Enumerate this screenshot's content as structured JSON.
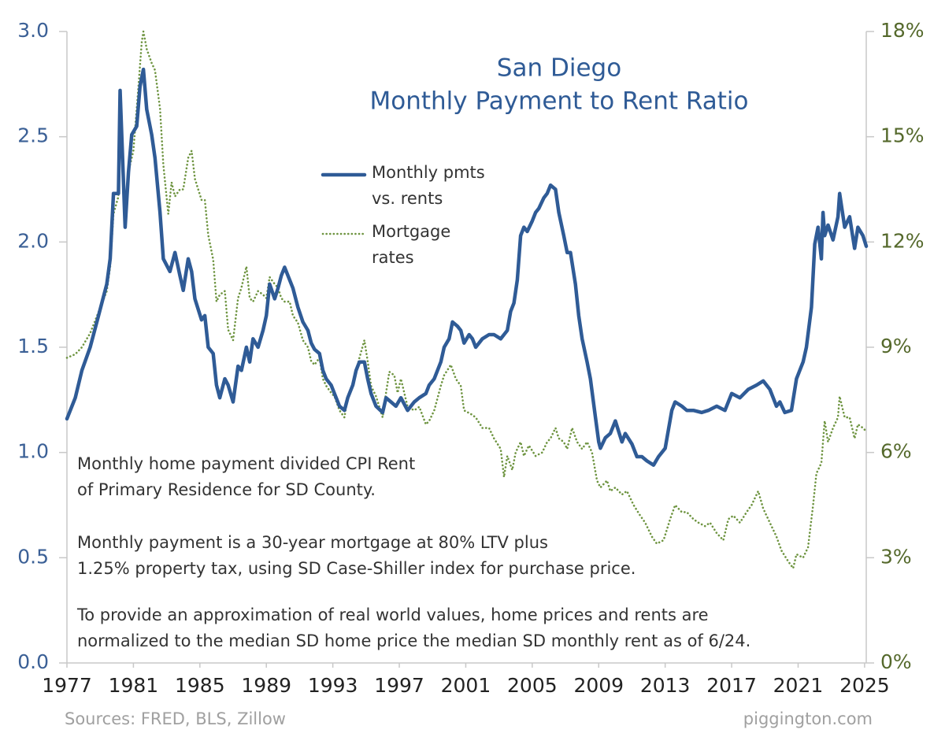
{
  "chart_data": {
    "type": "line",
    "title": "San Diego",
    "subtitle": "Monthly Payment to Rent Ratio",
    "xlim": [
      1977,
      2025.1
    ],
    "xticks": [
      1977,
      1981,
      1985,
      1989,
      1993,
      1997,
      2001,
      2005,
      2009,
      2013,
      2017,
      2021,
      2025
    ],
    "ylim": [
      0,
      3
    ],
    "yticks": [
      {
        "value": 0,
        "label": "0.0"
      },
      0.5,
      {
        "value": 1,
        "label": "1.0"
      },
      1.5,
      {
        "value": 2,
        "label": "2.0"
      },
      2.5,
      {
        "value": 3,
        "label": "3.0"
      }
    ],
    "y2lim": [
      0,
      18
    ],
    "y2ticks": [
      {
        "value": 0,
        "label": "0%"
      },
      {
        "value": 3,
        "label": "3%"
      },
      {
        "value": 6,
        "label": "6%"
      },
      {
        "value": 9,
        "label": "9%"
      },
      {
        "value": 12,
        "label": "12%"
      },
      {
        "value": 15,
        "label": "15%"
      },
      {
        "value": 18,
        "label": "18%"
      }
    ],
    "grid": false,
    "series": [
      {
        "name": "Monthly pmts vs. rents",
        "color": "#2f5b96",
        "style": "solid",
        "axis": "y",
        "x": [
          1977.0,
          1977.5,
          1977.9,
          1978.4,
          1978.9,
          1979.4,
          1979.6,
          1979.8,
          1980.1,
          1980.2,
          1980.5,
          1980.7,
          1980.9,
          1981.2,
          1981.4,
          1981.6,
          1981.8,
          1982.1,
          1982.3,
          1982.6,
          1982.8,
          1983.2,
          1983.5,
          1983.8,
          1984.0,
          1984.3,
          1984.5,
          1984.7,
          1985.1,
          1985.3,
          1985.5,
          1985.8,
          1986.0,
          1986.2,
          1986.5,
          1986.7,
          1987.0,
          1987.3,
          1987.5,
          1987.8,
          1988.0,
          1988.2,
          1988.5,
          1988.8,
          1989.0,
          1989.2,
          1989.5,
          1989.7,
          1989.9,
          1990.1,
          1990.4,
          1990.6,
          1990.9,
          1991.2,
          1991.5,
          1991.7,
          1991.9,
          1992.2,
          1992.4,
          1992.6,
          1992.9,
          1993.1,
          1993.4,
          1993.7,
          1993.9,
          1994.2,
          1994.4,
          1994.6,
          1994.9,
          1995.1,
          1995.3,
          1995.6,
          1996.0,
          1996.2,
          1996.5,
          1996.8,
          1997.1,
          1997.5,
          1997.9,
          1998.2,
          1998.6,
          1998.8,
          1999.1,
          1999.5,
          1999.7,
          2000.0,
          2000.2,
          2000.5,
          2000.7,
          2000.9,
          2001.2,
          2001.4,
          2001.6,
          2002.0,
          2002.4,
          2002.7,
          2003.1,
          2003.3,
          2003.5,
          2003.7,
          2003.9,
          2004.1,
          2004.3,
          2004.5,
          2004.7,
          2005.0,
          2005.2,
          2005.4,
          2005.7,
          2005.9,
          2006.1,
          2006.4,
          2006.6,
          2006.9,
          2007.1,
          2007.3,
          2007.6,
          2007.8,
          2008.0,
          2008.3,
          2008.5,
          2008.8,
          2009.0,
          2009.1,
          2009.4,
          2009.7,
          2010.0,
          2010.4,
          2010.6,
          2011.0,
          2011.3,
          2011.6,
          2011.9,
          2012.3,
          2012.6,
          2013.0,
          2013.4,
          2013.6,
          2014.0,
          2014.3,
          2014.7,
          2015.2,
          2015.6,
          2016.1,
          2016.6,
          2017.0,
          2017.5,
          2018.0,
          2018.5,
          2018.9,
          2019.3,
          2019.7,
          2019.9,
          2020.2,
          2020.6,
          2020.9,
          2021.3,
          2021.5,
          2021.8,
          2022.0,
          2022.2,
          2022.4,
          2022.5,
          2022.6,
          2022.8,
          2023.1,
          2023.4,
          2023.5,
          2023.8,
          2024.1,
          2024.4,
          2024.6,
          2024.9,
          2025.1
        ],
        "values": [
          1.16,
          1.26,
          1.39,
          1.5,
          1.65,
          1.8,
          1.92,
          2.23,
          2.23,
          2.72,
          2.07,
          2.33,
          2.51,
          2.55,
          2.74,
          2.82,
          2.63,
          2.51,
          2.4,
          2.14,
          1.92,
          1.86,
          1.95,
          1.84,
          1.77,
          1.92,
          1.86,
          1.73,
          1.63,
          1.65,
          1.5,
          1.47,
          1.32,
          1.26,
          1.35,
          1.32,
          1.24,
          1.41,
          1.39,
          1.5,
          1.43,
          1.54,
          1.5,
          1.58,
          1.65,
          1.8,
          1.73,
          1.78,
          1.84,
          1.88,
          1.82,
          1.78,
          1.69,
          1.62,
          1.58,
          1.52,
          1.49,
          1.47,
          1.39,
          1.35,
          1.32,
          1.28,
          1.22,
          1.2,
          1.26,
          1.32,
          1.39,
          1.43,
          1.43,
          1.35,
          1.28,
          1.22,
          1.19,
          1.26,
          1.24,
          1.22,
          1.26,
          1.2,
          1.24,
          1.26,
          1.28,
          1.32,
          1.35,
          1.43,
          1.5,
          1.54,
          1.62,
          1.6,
          1.58,
          1.52,
          1.56,
          1.54,
          1.5,
          1.54,
          1.56,
          1.56,
          1.54,
          1.56,
          1.58,
          1.67,
          1.71,
          1.82,
          2.03,
          2.07,
          2.05,
          2.1,
          2.14,
          2.16,
          2.21,
          2.23,
          2.27,
          2.25,
          2.14,
          2.03,
          1.95,
          1.95,
          1.8,
          1.65,
          1.54,
          1.43,
          1.35,
          1.17,
          1.05,
          1.02,
          1.07,
          1.09,
          1.15,
          1.05,
          1.09,
          1.04,
          0.98,
          0.98,
          0.96,
          0.94,
          0.98,
          1.02,
          1.2,
          1.24,
          1.22,
          1.2,
          1.2,
          1.19,
          1.2,
          1.22,
          1.2,
          1.28,
          1.26,
          1.3,
          1.32,
          1.34,
          1.3,
          1.22,
          1.24,
          1.19,
          1.2,
          1.35,
          1.43,
          1.5,
          1.69,
          1.99,
          2.07,
          1.92,
          2.14,
          2.03,
          2.08,
          2.01,
          2.12,
          2.23,
          2.07,
          2.12,
          1.97,
          2.07,
          2.03,
          1.98
        ]
      },
      {
        "name": "Mortgage rates",
        "color": "#6e9440",
        "style": "dotted",
        "axis": "y2",
        "x": [
          1977.0,
          1977.5,
          1977.9,
          1978.4,
          1978.9,
          1979.4,
          1979.6,
          1979.8,
          1980.1,
          1980.2,
          1980.5,
          1980.7,
          1981.0,
          1981.3,
          1981.5,
          1981.6,
          1981.8,
          1982.1,
          1982.3,
          1982.6,
          1982.8,
          1983.1,
          1983.3,
          1983.5,
          1983.8,
          1984.0,
          1984.3,
          1984.5,
          1984.7,
          1985.1,
          1985.3,
          1985.5,
          1985.8,
          1986.0,
          1986.2,
          1986.5,
          1986.7,
          1987.0,
          1987.3,
          1987.5,
          1987.8,
          1988.0,
          1988.2,
          1988.5,
          1988.8,
          1989.0,
          1989.2,
          1989.5,
          1989.7,
          1989.9,
          1990.1,
          1990.4,
          1990.6,
          1990.9,
          1991.2,
          1991.5,
          1991.7,
          1991.9,
          1992.2,
          1992.4,
          1992.6,
          1992.9,
          1993.1,
          1993.4,
          1993.7,
          1993.9,
          1994.2,
          1994.4,
          1994.6,
          1994.9,
          1995.1,
          1995.3,
          1995.6,
          1996.0,
          1996.2,
          1996.4,
          1996.7,
          1996.9,
          1997.1,
          1997.5,
          1997.9,
          1998.2,
          1998.6,
          1998.8,
          1999.1,
          1999.5,
          1999.7,
          2000.1,
          2000.4,
          2000.7,
          2000.9,
          2001.3,
          2001.6,
          2002.0,
          2002.4,
          2002.7,
          2003.1,
          2003.3,
          2003.5,
          2003.8,
          2004.0,
          2004.3,
          2004.5,
          2004.8,
          2005.2,
          2005.6,
          2005.9,
          2006.1,
          2006.4,
          2006.6,
          2006.9,
          2007.1,
          2007.4,
          2007.7,
          2008.0,
          2008.3,
          2008.6,
          2008.9,
          2009.1,
          2009.5,
          2009.7,
          2010.0,
          2010.4,
          2010.7,
          2011.1,
          2011.5,
          2011.8,
          2012.2,
          2012.5,
          2012.9,
          2013.3,
          2013.6,
          2014.0,
          2014.3,
          2014.7,
          2015.0,
          2015.4,
          2015.7,
          2016.1,
          2016.5,
          2016.8,
          2017.1,
          2017.5,
          2017.9,
          2018.2,
          2018.6,
          2018.9,
          2019.3,
          2019.7,
          2020.0,
          2020.4,
          2020.7,
          2020.9,
          2021.3,
          2021.6,
          2021.9,
          2022.1,
          2022.4,
          2022.6,
          2022.8,
          2023.1,
          2023.4,
          2023.5,
          2023.8,
          2024.1,
          2024.4,
          2024.6,
          2024.9,
          2025.1
        ],
        "values": [
          8.7,
          8.8,
          9.0,
          9.4,
          10.0,
          10.6,
          11.3,
          12.8,
          13.3,
          16.3,
          12.4,
          14.0,
          14.6,
          16.4,
          17.7,
          18.0,
          17.5,
          17.1,
          16.9,
          15.8,
          14.2,
          12.8,
          13.7,
          13.3,
          13.5,
          13.5,
          14.4,
          14.6,
          13.8,
          13.2,
          13.2,
          12.2,
          11.5,
          10.3,
          10.5,
          10.6,
          9.5,
          9.2,
          10.4,
          10.7,
          11.3,
          10.4,
          10.3,
          10.6,
          10.5,
          10.4,
          11.0,
          10.8,
          10.7,
          10.4,
          10.3,
          10.3,
          9.9,
          9.7,
          9.2,
          9.0,
          8.6,
          8.5,
          8.7,
          8.1,
          7.9,
          7.7,
          7.6,
          7.2,
          7.0,
          7.6,
          7.9,
          8.3,
          8.7,
          9.2,
          8.6,
          7.9,
          7.6,
          7.0,
          7.7,
          8.3,
          8.2,
          7.7,
          8.1,
          7.3,
          7.2,
          7.3,
          6.8,
          6.9,
          7.2,
          7.9,
          8.2,
          8.5,
          8.1,
          7.9,
          7.2,
          7.1,
          7.0,
          6.7,
          6.7,
          6.4,
          6.1,
          5.3,
          5.9,
          5.5,
          6.0,
          6.3,
          5.9,
          6.2,
          5.9,
          6.0,
          6.3,
          6.4,
          6.7,
          6.4,
          6.3,
          6.1,
          6.7,
          6.3,
          6.1,
          6.3,
          6.0,
          5.2,
          5.0,
          5.2,
          4.9,
          5.0,
          4.8,
          4.9,
          4.5,
          4.2,
          4.0,
          3.6,
          3.4,
          3.5,
          4.1,
          4.5,
          4.3,
          4.3,
          4.1,
          4.0,
          3.9,
          4.0,
          3.7,
          3.5,
          4.1,
          4.2,
          4.0,
          4.3,
          4.5,
          4.9,
          4.4,
          4.0,
          3.6,
          3.2,
          2.9,
          2.7,
          3.1,
          3.0,
          3.3,
          4.5,
          5.4,
          5.7,
          6.9,
          6.3,
          6.7,
          7.0,
          7.6,
          7.0,
          7.0,
          6.4,
          6.8,
          6.7,
          6.6
        ]
      }
    ],
    "notes": [
      [
        "Monthly home payment divided CPI Rent",
        "of Primary Residence for SD County."
      ],
      [
        "Monthly payment is a 30-year mortgage at 80% LTV plus",
        "1.25% property tax, using SD Case-Shiller index for purchase price."
      ],
      [
        "To provide an approximation of real world values, home prices and rents are",
        "normalized to the median SD home price the median SD monthly rent as of 6/24."
      ]
    ],
    "source": "Sources: FRED, BLS, Zillow",
    "credit": "piggington.com"
  }
}
